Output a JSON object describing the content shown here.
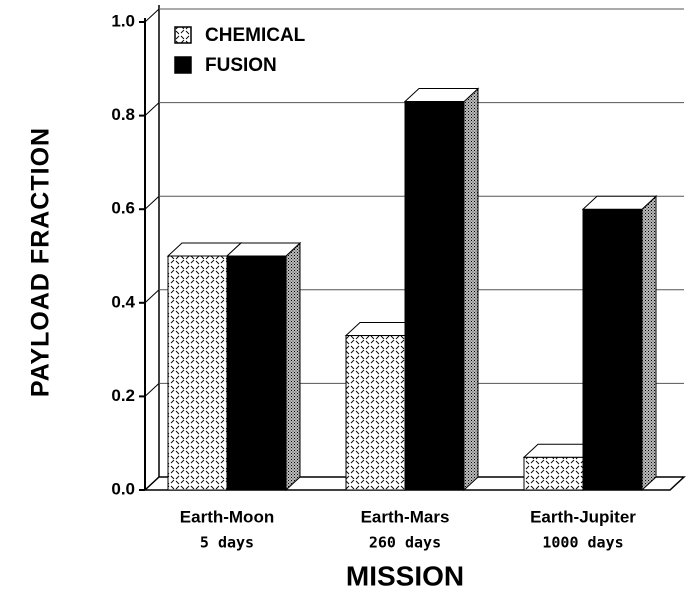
{
  "chart_data": {
    "type": "bar3d",
    "ylabel": "PAYLOAD FRACTION",
    "xlabel": "MISSION",
    "categories": [
      "Earth-Moon",
      "Earth-Mars",
      "Earth-Jupiter"
    ],
    "category_sublabels": [
      "5 days",
      "260 days",
      "1000 days"
    ],
    "series": [
      {
        "name": "CHEMICAL",
        "color": "#ffffff",
        "values": [
          0.5,
          0.33,
          0.07
        ]
      },
      {
        "name": "FUSION",
        "color": "#000000",
        "values": [
          0.5,
          0.83,
          0.6
        ]
      }
    ],
    "ylim": [
      0,
      1
    ],
    "yticks": [
      {
        "value": 0,
        "label": "0.0"
      },
      {
        "value": 0.2,
        "label": "0.2"
      },
      {
        "value": 0.4,
        "label": "0.4"
      },
      {
        "value": 0.6,
        "label": "0.6"
      },
      {
        "value": 0.8,
        "label": "0.8"
      },
      {
        "value": 1,
        "label": "1.0"
      }
    ],
    "grid": true
  }
}
